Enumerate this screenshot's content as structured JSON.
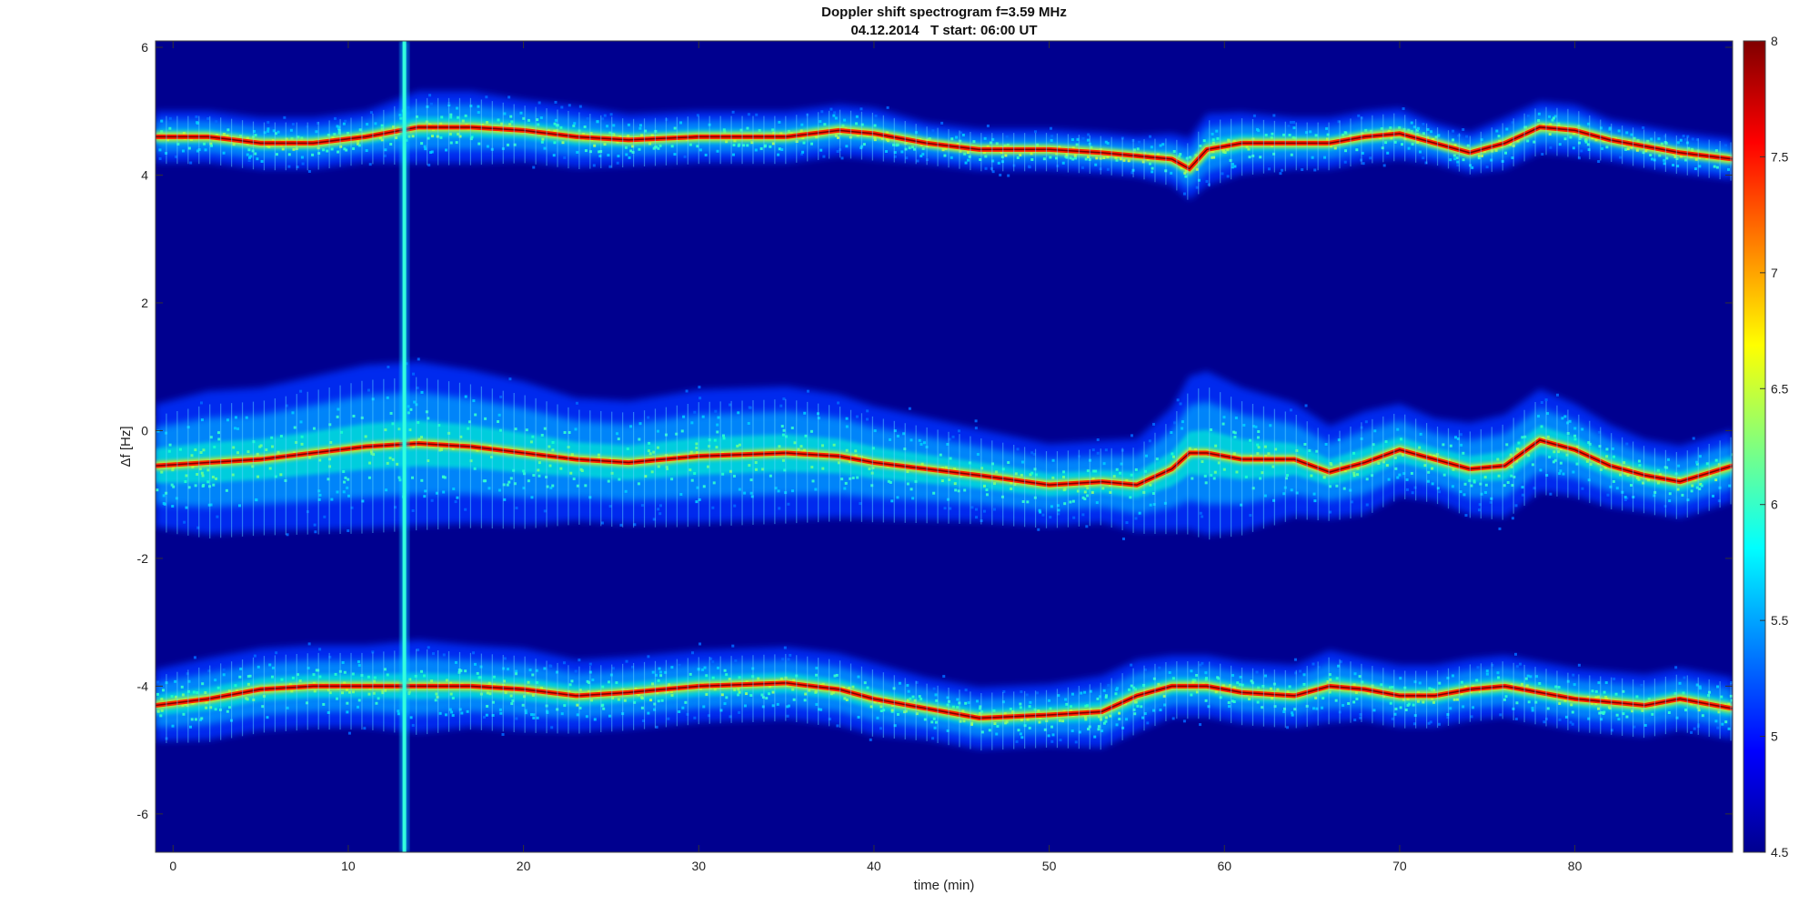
{
  "chart_data": {
    "type": "heatmap",
    "title": "Doppler shift spectrogram f=3.59 MHz",
    "subtitle": "04.12.2014   T start: 06:00 UT",
    "xlabel": "time (min)",
    "ylabel": "Δf [Hz]",
    "xlim": [
      -1,
      89
    ],
    "ylim": [
      -6.6,
      6.1
    ],
    "x_ticks": [
      0,
      10,
      20,
      30,
      40,
      50,
      60,
      70,
      80
    ],
    "y_ticks": [
      -6,
      -4,
      -2,
      0,
      2,
      4,
      6
    ],
    "colorbar": {
      "colormap": "jet",
      "range": [
        4.5,
        8
      ],
      "ticks": [
        4.5,
        5,
        5.5,
        6,
        6.5,
        7,
        7.5,
        8
      ]
    },
    "background_level": 4.5,
    "broadband_interference_x": 13.2,
    "series": [
      {
        "x": [
          -1,
          2,
          5,
          8,
          11,
          14,
          17,
          20,
          23,
          26,
          30,
          35,
          38,
          40,
          43,
          46,
          50,
          53,
          55,
          57,
          58,
          59,
          61,
          64,
          66,
          68,
          70,
          72,
          74,
          76,
          78,
          80,
          82,
          84,
          86,
          89
        ],
        "y": [
          4.6,
          4.6,
          4.5,
          4.5,
          4.6,
          4.75,
          4.75,
          4.7,
          4.6,
          4.55,
          4.6,
          4.6,
          4.7,
          4.65,
          4.5,
          4.4,
          4.4,
          4.35,
          4.3,
          4.25,
          4.1,
          4.4,
          4.5,
          4.5,
          4.5,
          4.6,
          4.65,
          4.5,
          4.35,
          4.5,
          4.75,
          4.7,
          4.55,
          4.45,
          4.35,
          4.25
        ],
        "width": [
          0.25,
          0.25,
          0.25,
          0.25,
          0.25,
          0.35,
          0.35,
          0.3,
          0.3,
          0.25,
          0.25,
          0.25,
          0.25,
          0.25,
          0.2,
          0.2,
          0.2,
          0.2,
          0.2,
          0.25,
          0.3,
          0.35,
          0.3,
          0.25,
          0.25,
          0.25,
          0.25,
          0.2,
          0.2,
          0.25,
          0.25,
          0.25,
          0.2,
          0.2,
          0.2,
          0.2
        ]
      },
      {
        "x": [
          -1,
          2,
          5,
          8,
          11,
          14,
          17,
          20,
          23,
          26,
          30,
          35,
          38,
          40,
          43,
          46,
          50,
          53,
          55,
          57,
          58,
          59,
          61,
          64,
          66,
          68,
          70,
          72,
          74,
          76,
          78,
          80,
          82,
          84,
          86,
          89
        ],
        "y": [
          -0.55,
          -0.5,
          -0.45,
          -0.35,
          -0.25,
          -0.2,
          -0.25,
          -0.35,
          -0.45,
          -0.5,
          -0.4,
          -0.35,
          -0.4,
          -0.5,
          -0.6,
          -0.7,
          -0.85,
          -0.8,
          -0.85,
          -0.6,
          -0.35,
          -0.35,
          -0.45,
          -0.45,
          -0.65,
          -0.5,
          -0.3,
          -0.45,
          -0.6,
          -0.55,
          -0.15,
          -0.3,
          -0.55,
          -0.7,
          -0.8,
          -0.55
        ],
        "width": [
          0.6,
          0.7,
          0.7,
          0.75,
          0.8,
          0.8,
          0.75,
          0.7,
          0.6,
          0.6,
          0.65,
          0.65,
          0.6,
          0.55,
          0.5,
          0.45,
          0.4,
          0.4,
          0.45,
          0.6,
          0.75,
          0.8,
          0.7,
          0.55,
          0.45,
          0.5,
          0.45,
          0.4,
          0.45,
          0.5,
          0.5,
          0.45,
          0.4,
          0.35,
          0.35,
          0.35
        ]
      },
      {
        "x": [
          -1,
          2,
          5,
          8,
          11,
          14,
          17,
          20,
          23,
          26,
          30,
          35,
          38,
          40,
          43,
          46,
          50,
          53,
          55,
          57,
          58,
          59,
          61,
          64,
          66,
          68,
          70,
          72,
          74,
          76,
          78,
          80,
          82,
          84,
          86,
          89
        ],
        "y": [
          -4.3,
          -4.2,
          -4.05,
          -4.0,
          -4.0,
          -4.0,
          -4.0,
          -4.05,
          -4.15,
          -4.1,
          -4.0,
          -3.95,
          -4.05,
          -4.2,
          -4.35,
          -4.5,
          -4.45,
          -4.4,
          -4.15,
          -4.0,
          -4.0,
          -4.0,
          -4.1,
          -4.15,
          -4.0,
          -4.05,
          -4.15,
          -4.15,
          -4.05,
          -4.0,
          -4.1,
          -4.2,
          -4.25,
          -4.3,
          -4.2,
          -4.35
        ],
        "width": [
          0.35,
          0.4,
          0.4,
          0.4,
          0.4,
          0.45,
          0.4,
          0.4,
          0.35,
          0.35,
          0.35,
          0.35,
          0.35,
          0.35,
          0.3,
          0.3,
          0.3,
          0.35,
          0.35,
          0.3,
          0.3,
          0.3,
          0.3,
          0.3,
          0.35,
          0.3,
          0.3,
          0.3,
          0.3,
          0.3,
          0.3,
          0.3,
          0.3,
          0.3,
          0.3,
          0.3
        ]
      }
    ]
  }
}
